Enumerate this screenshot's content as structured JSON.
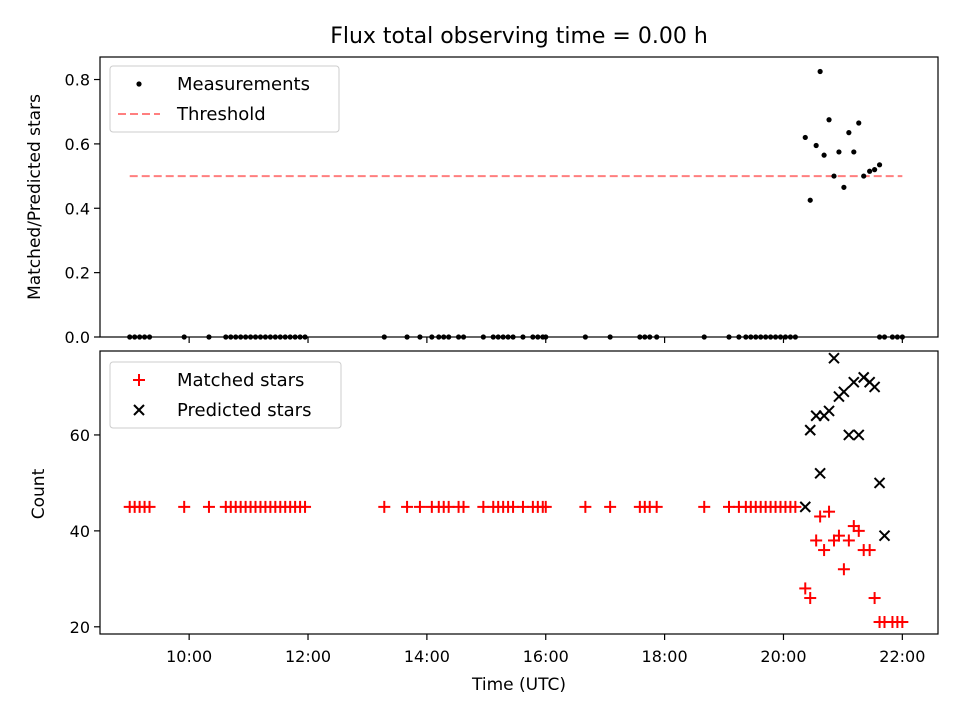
{
  "chart_data": [
    {
      "type": "scatter",
      "title": "Flux total observing time = 0.00 h",
      "xlabel": "",
      "ylabel": "Matched/Predicted stars",
      "x_range_hours": [
        8.5,
        22.6
      ],
      "ylim": [
        0.0,
        0.87
      ],
      "yticks": [
        "0.0",
        "0.2",
        "0.4",
        "0.6",
        "0.8"
      ],
      "xtick_values": [
        10,
        12,
        14,
        16,
        18,
        20,
        22
      ],
      "legend_position": "upper-left",
      "grid": false,
      "series": [
        {
          "name": "Measurements",
          "marker": "dot",
          "color": "#000000",
          "points": [
            [
              "9:00",
              0.0
            ],
            [
              "9:05",
              0.0
            ],
            [
              "9:10",
              0.0
            ],
            [
              "9:15",
              0.0
            ],
            [
              "9:20",
              0.0
            ],
            [
              "9:55",
              0.0
            ],
            [
              "10:20",
              0.0
            ],
            [
              "10:37",
              0.0
            ],
            [
              "10:42",
              0.0
            ],
            [
              "10:47",
              0.0
            ],
            [
              "10:52",
              0.0
            ],
            [
              "10:57",
              0.0
            ],
            [
              "11:02",
              0.0
            ],
            [
              "11:07",
              0.0
            ],
            [
              "11:12",
              0.0
            ],
            [
              "11:17",
              0.0
            ],
            [
              "11:22",
              0.0
            ],
            [
              "11:27",
              0.0
            ],
            [
              "11:32",
              0.0
            ],
            [
              "11:37",
              0.0
            ],
            [
              "11:42",
              0.0
            ],
            [
              "11:47",
              0.0
            ],
            [
              "11:52",
              0.0
            ],
            [
              "11:57",
              0.0
            ],
            [
              "13:17",
              0.0
            ],
            [
              "13:40",
              0.0
            ],
            [
              "13:53",
              0.0
            ],
            [
              "14:05",
              0.0
            ],
            [
              "14:12",
              0.0
            ],
            [
              "14:17",
              0.0
            ],
            [
              "14:22",
              0.0
            ],
            [
              "14:32",
              0.0
            ],
            [
              "14:37",
              0.0
            ],
            [
              "14:57",
              0.0
            ],
            [
              "15:07",
              0.0
            ],
            [
              "15:12",
              0.0
            ],
            [
              "15:17",
              0.0
            ],
            [
              "15:22",
              0.0
            ],
            [
              "15:27",
              0.0
            ],
            [
              "15:37",
              0.0
            ],
            [
              "15:47",
              0.0
            ],
            [
              "15:52",
              0.0
            ],
            [
              "15:57",
              0.0
            ],
            [
              "16:00",
              0.0
            ],
            [
              "16:40",
              0.0
            ],
            [
              "17:05",
              0.0
            ],
            [
              "17:35",
              0.0
            ],
            [
              "17:40",
              0.0
            ],
            [
              "17:45",
              0.0
            ],
            [
              "17:52",
              0.0
            ],
            [
              "18:40",
              0.0
            ],
            [
              "19:05",
              0.0
            ],
            [
              "19:15",
              0.0
            ],
            [
              "19:22",
              0.0
            ],
            [
              "19:27",
              0.0
            ],
            [
              "19:32",
              0.0
            ],
            [
              "19:37",
              0.0
            ],
            [
              "19:42",
              0.0
            ],
            [
              "19:47",
              0.0
            ],
            [
              "19:52",
              0.0
            ],
            [
              "19:57",
              0.0
            ],
            [
              "20:02",
              0.0
            ],
            [
              "20:07",
              0.0
            ],
            [
              "20:12",
              0.0
            ],
            [
              "21:37",
              0.0
            ],
            [
              "21:42",
              0.0
            ],
            [
              "21:50",
              0.0
            ],
            [
              "21:55",
              0.0
            ],
            [
              "22:00",
              0.0
            ],
            [
              "20:22",
              0.62
            ],
            [
              "20:27",
              0.425
            ],
            [
              "20:33",
              0.595
            ],
            [
              "20:41",
              0.565
            ],
            [
              "20:46",
              0.675
            ],
            [
              "20:51",
              0.5
            ],
            [
              "20:56",
              0.575
            ],
            [
              "21:01",
              0.465
            ],
            [
              "21:06",
              0.635
            ],
            [
              "21:11",
              0.575
            ],
            [
              "21:16",
              0.665
            ],
            [
              "21:21",
              0.5
            ],
            [
              "21:27",
              0.515
            ],
            [
              "21:32",
              0.52
            ],
            [
              "21:37",
              0.535
            ],
            [
              "20:37",
              0.825
            ]
          ]
        },
        {
          "name": "Threshold",
          "line": "dashed",
          "color": "#ff7f7f",
          "points": [
            [
              "9:00",
              0.5
            ],
            [
              "22:00",
              0.5
            ]
          ]
        }
      ]
    },
    {
      "type": "scatter",
      "title": "",
      "xlabel": "Time (UTC)",
      "ylabel": "Count",
      "x_range_hours": [
        8.5,
        22.6
      ],
      "ylim": [
        18.5,
        77.5
      ],
      "yticks": [
        "20",
        "40",
        "60"
      ],
      "xtick_values": [
        10,
        12,
        14,
        16,
        18,
        20,
        22
      ],
      "xtick_labels": [
        "10:00",
        "12:00",
        "14:00",
        "16:00",
        "18:00",
        "20:00",
        "22:00"
      ],
      "legend_position": "upper-left",
      "grid": false,
      "series": [
        {
          "name": "Matched stars",
          "marker": "plus",
          "color": "#ff0000",
          "points": [
            [
              "9:00",
              45
            ],
            [
              "9:05",
              45
            ],
            [
              "9:10",
              45
            ],
            [
              "9:15",
              45
            ],
            [
              "9:20",
              45
            ],
            [
              "9:55",
              45
            ],
            [
              "10:20",
              45
            ],
            [
              "10:37",
              45
            ],
            [
              "10:42",
              45
            ],
            [
              "10:47",
              45
            ],
            [
              "10:52",
              45
            ],
            [
              "10:57",
              45
            ],
            [
              "11:02",
              45
            ],
            [
              "11:07",
              45
            ],
            [
              "11:12",
              45
            ],
            [
              "11:17",
              45
            ],
            [
              "11:22",
              45
            ],
            [
              "11:27",
              45
            ],
            [
              "11:32",
              45
            ],
            [
              "11:37",
              45
            ],
            [
              "11:42",
              45
            ],
            [
              "11:47",
              45
            ],
            [
              "11:52",
              45
            ],
            [
              "11:57",
              45
            ],
            [
              "13:17",
              45
            ],
            [
              "13:40",
              45
            ],
            [
              "13:53",
              45
            ],
            [
              "14:05",
              45
            ],
            [
              "14:12",
              45
            ],
            [
              "14:17",
              45
            ],
            [
              "14:22",
              45
            ],
            [
              "14:32",
              45
            ],
            [
              "14:37",
              45
            ],
            [
              "14:57",
              45
            ],
            [
              "15:07",
              45
            ],
            [
              "15:12",
              45
            ],
            [
              "15:17",
              45
            ],
            [
              "15:22",
              45
            ],
            [
              "15:27",
              45
            ],
            [
              "15:37",
              45
            ],
            [
              "15:47",
              45
            ],
            [
              "15:52",
              45
            ],
            [
              "15:57",
              45
            ],
            [
              "16:00",
              45
            ],
            [
              "16:40",
              45
            ],
            [
              "17:05",
              45
            ],
            [
              "17:35",
              45
            ],
            [
              "17:40",
              45
            ],
            [
              "17:45",
              45
            ],
            [
              "17:52",
              45
            ],
            [
              "18:40",
              45
            ],
            [
              "19:05",
              45
            ],
            [
              "19:15",
              45
            ],
            [
              "19:22",
              45
            ],
            [
              "19:27",
              45
            ],
            [
              "19:32",
              45
            ],
            [
              "19:37",
              45
            ],
            [
              "19:42",
              45
            ],
            [
              "19:47",
              45
            ],
            [
              "19:52",
              45
            ],
            [
              "19:57",
              45
            ],
            [
              "20:02",
              45
            ],
            [
              "20:07",
              45
            ],
            [
              "20:12",
              45
            ],
            [
              "20:22",
              28
            ],
            [
              "20:27",
              26
            ],
            [
              "20:33",
              38
            ],
            [
              "20:37",
              43
            ],
            [
              "20:41",
              36
            ],
            [
              "20:46",
              44
            ],
            [
              "20:51",
              38
            ],
            [
              "20:56",
              39
            ],
            [
              "21:01",
              32
            ],
            [
              "21:06",
              38
            ],
            [
              "21:11",
              41
            ],
            [
              "21:16",
              40
            ],
            [
              "21:21",
              36
            ],
            [
              "21:27",
              36
            ],
            [
              "21:32",
              26
            ],
            [
              "21:37",
              21
            ],
            [
              "21:42",
              21
            ],
            [
              "21:50",
              21
            ],
            [
              "21:55",
              21
            ],
            [
              "22:00",
              21
            ]
          ]
        },
        {
          "name": "Predicted stars",
          "marker": "x",
          "color": "#000000",
          "points": [
            [
              "20:22",
              45
            ],
            [
              "20:27",
              61
            ],
            [
              "20:33",
              64
            ],
            [
              "20:37",
              52
            ],
            [
              "20:41",
              64
            ],
            [
              "20:46",
              65
            ],
            [
              "20:51",
              76
            ],
            [
              "20:56",
              68
            ],
            [
              "21:01",
              69
            ],
            [
              "21:06",
              60
            ],
            [
              "21:11",
              71
            ],
            [
              "21:16",
              60
            ],
            [
              "21:21",
              72
            ],
            [
              "21:27",
              71
            ],
            [
              "21:32",
              70
            ],
            [
              "21:37",
              50
            ],
            [
              "21:42",
              39
            ]
          ]
        }
      ]
    }
  ]
}
